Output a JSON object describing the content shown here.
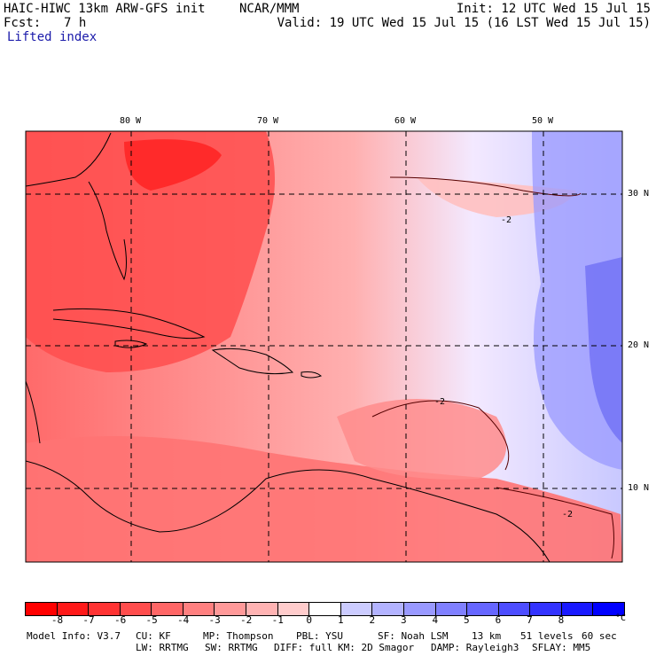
{
  "header": {
    "model": "HAIC-HIWC 13km ARW-GFS init",
    "org": "NCAR/MMM",
    "init": "Init: 12 UTC Wed 15 Jul 15",
    "fcst_label": "Fcst:",
    "fcst_value": "7 h",
    "valid": "Valid: 19 UTC Wed 15 Jul 15 (16 LST Wed 15 Jul 15)",
    "field": "Lifted index"
  },
  "map": {
    "longitude_labels": [
      "80 W",
      "70 W",
      "60 W",
      "50 W"
    ],
    "latitude_labels": [
      "30 N",
      "20 N",
      "10 N"
    ],
    "contour_labels": [
      "-2",
      "-2",
      "-2"
    ],
    "gridlines": "dashed"
  },
  "colorbar": {
    "ticks": [
      "-8",
      "-7",
      "-6",
      "-5",
      "-4",
      "-3",
      "-2",
      "-1",
      "0",
      "1",
      "2",
      "3",
      "4",
      "5",
      "6",
      "7",
      "8"
    ],
    "unit": "°C",
    "colors": [
      "#ff0000",
      "#ff1919",
      "#ff3333",
      "#ff4d4d",
      "#ff6666",
      "#ff8080",
      "#ff9999",
      "#ffb3b3",
      "#ffcccc",
      "#ffffff",
      "#ccccff",
      "#b3b3ff",
      "#9999ff",
      "#8080ff",
      "#6666ff",
      "#4d4dff",
      "#3333ff",
      "#1919ff",
      "#0000ff"
    ]
  },
  "footer": {
    "line1": [
      "Model Info: V3.7",
      "CU: KF",
      "MP: Thompson",
      "PBL: YSU",
      "SF: Noah LSM",
      "13 km",
      "51 levels",
      "60 sec"
    ],
    "line2": [
      "LW: RRTMG",
      "SW: RRTMG",
      "DIFF: full",
      "KM: 2D Smagor",
      "DAMP: Rayleigh3",
      "SFLAY: MM5"
    ]
  }
}
